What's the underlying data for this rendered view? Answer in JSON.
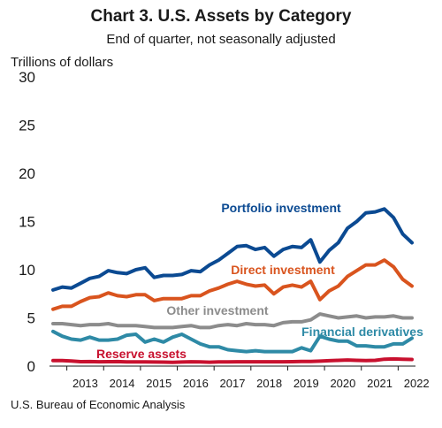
{
  "title": "Chart 3. U.S. Assets by Category",
  "subtitle": "End of quarter, not seasonally adjusted",
  "ylabel": "Trillions of dollars",
  "source": "U.S. Bureau of Economic Analysis",
  "chart_data": {
    "type": "line",
    "title": "Chart 3. U.S. Assets by Category",
    "subtitle": "End of quarter, not seasonally adjusted",
    "ylabel": "Trillions of dollars",
    "xlabel": "",
    "ylim": [
      0,
      30
    ],
    "yticks": [
      0,
      5,
      10,
      15,
      20,
      25,
      30
    ],
    "xticks": [
      "2013",
      "2014",
      "2015",
      "2016",
      "2017",
      "2018",
      "2019",
      "2020",
      "2021",
      "2022"
    ],
    "x": [
      "2012Q3",
      "2012Q4",
      "2013Q1",
      "2013Q2",
      "2013Q3",
      "2013Q4",
      "2014Q1",
      "2014Q2",
      "2014Q3",
      "2014Q4",
      "2015Q1",
      "2015Q2",
      "2015Q3",
      "2015Q4",
      "2016Q1",
      "2016Q2",
      "2016Q3",
      "2016Q4",
      "2017Q1",
      "2017Q2",
      "2017Q3",
      "2017Q4",
      "2018Q1",
      "2018Q2",
      "2018Q3",
      "2018Q4",
      "2019Q1",
      "2019Q2",
      "2019Q3",
      "2019Q4",
      "2020Q1",
      "2020Q2",
      "2020Q3",
      "2020Q4",
      "2021Q1",
      "2021Q2",
      "2021Q3",
      "2021Q4",
      "2022Q1",
      "2022Q2"
    ],
    "grid": false,
    "legend": "direct labels on lines",
    "series": [
      {
        "name": "Portfolio investment",
        "color": "#0b4a92",
        "values": [
          7.9,
          8.2,
          8.1,
          8.6,
          9.1,
          9.3,
          9.9,
          9.7,
          9.6,
          10.0,
          10.2,
          9.2,
          9.4,
          9.4,
          9.5,
          9.9,
          9.8,
          10.5,
          11.0,
          11.7,
          12.4,
          12.5,
          12.1,
          12.3,
          11.4,
          12.1,
          12.4,
          12.3,
          13.1,
          10.8,
          12.0,
          12.8,
          14.3,
          15.0,
          15.9,
          16.0,
          16.3,
          15.4,
          13.7,
          12.8
        ]
      },
      {
        "name": "Direct investment",
        "color": "#d9541e",
        "values": [
          5.9,
          6.2,
          6.2,
          6.7,
          7.1,
          7.2,
          7.6,
          7.3,
          7.2,
          7.4,
          7.4,
          6.8,
          7.0,
          7.0,
          7.0,
          7.3,
          7.3,
          7.8,
          8.1,
          8.5,
          8.8,
          8.5,
          8.3,
          8.4,
          7.5,
          8.2,
          8.4,
          8.2,
          8.8,
          6.9,
          7.8,
          8.3,
          9.3,
          9.9,
          10.5,
          10.5,
          11.0,
          10.3,
          9.0,
          8.3
        ]
      },
      {
        "name": "Other investment",
        "color": "#8c8c8c",
        "values": [
          4.4,
          4.4,
          4.3,
          4.2,
          4.3,
          4.3,
          4.4,
          4.2,
          4.2,
          4.2,
          4.1,
          4.0,
          4.0,
          4.0,
          4.1,
          4.2,
          4.0,
          4.0,
          4.2,
          4.3,
          4.2,
          4.4,
          4.3,
          4.3,
          4.2,
          4.5,
          4.6,
          4.6,
          4.8,
          5.4,
          5.2,
          5.0,
          5.1,
          5.2,
          5.0,
          5.1,
          5.1,
          5.2,
          5.0,
          5.0
        ]
      },
      {
        "name": "Financial derivatives",
        "color": "#2e8aa6",
        "values": [
          3.6,
          3.1,
          2.8,
          2.7,
          3.0,
          2.7,
          2.7,
          2.8,
          3.2,
          3.3,
          2.5,
          2.8,
          2.5,
          3.0,
          3.3,
          2.8,
          2.3,
          2.0,
          2.0,
          1.7,
          1.6,
          1.5,
          1.6,
          1.5,
          1.5,
          1.5,
          1.5,
          1.9,
          1.6,
          3.1,
          2.8,
          2.6,
          2.6,
          2.1,
          2.1,
          2.0,
          2.0,
          2.3,
          2.3,
          2.9
        ]
      },
      {
        "name": "Reserve assets",
        "color": "#c8102e",
        "values": [
          0.58,
          0.57,
          0.53,
          0.46,
          0.47,
          0.45,
          0.46,
          0.47,
          0.44,
          0.43,
          0.43,
          0.42,
          0.41,
          0.39,
          0.42,
          0.45,
          0.44,
          0.4,
          0.43,
          0.44,
          0.45,
          0.45,
          0.45,
          0.45,
          0.45,
          0.45,
          0.46,
          0.48,
          0.49,
          0.51,
          0.56,
          0.6,
          0.63,
          0.6,
          0.58,
          0.6,
          0.72,
          0.74,
          0.72,
          0.69
        ]
      }
    ]
  }
}
